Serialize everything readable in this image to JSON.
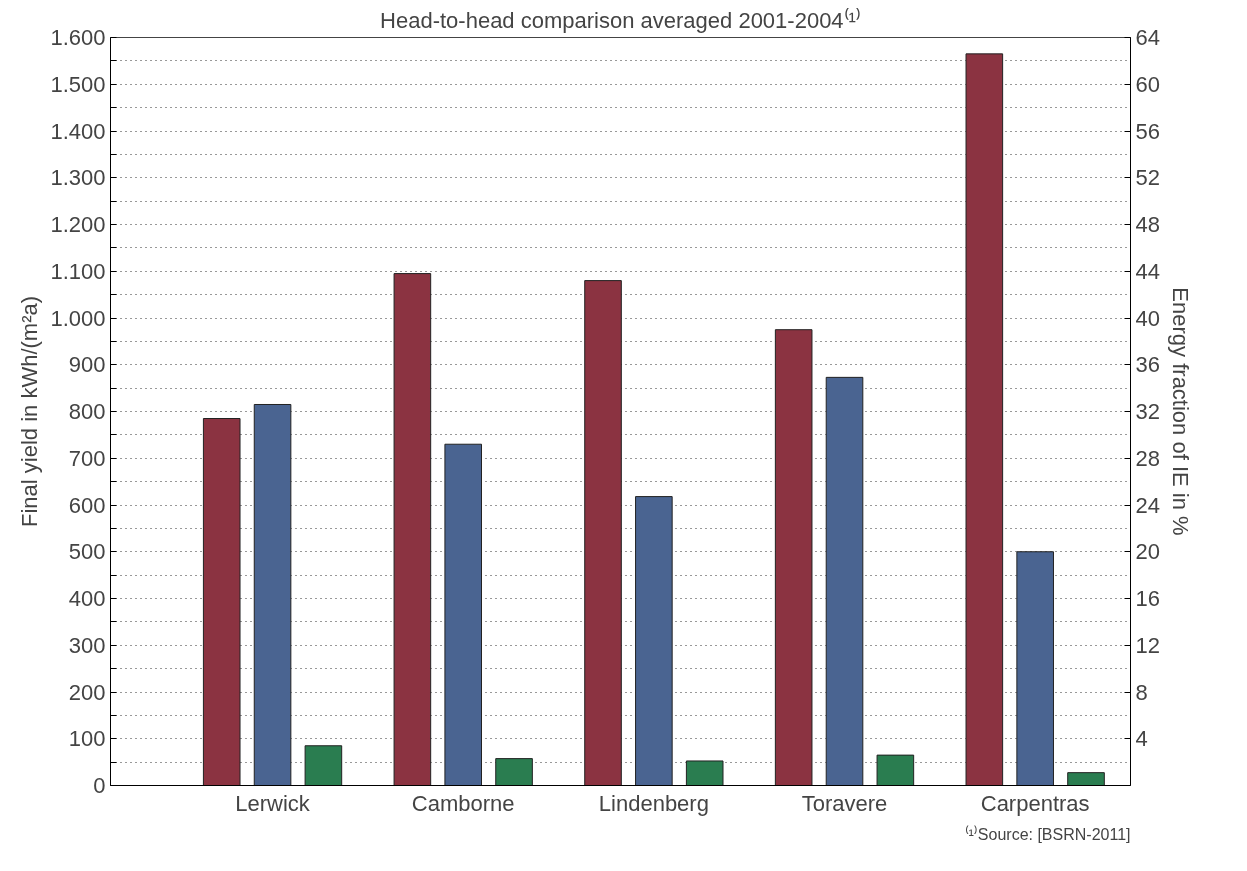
{
  "chart_data": {
    "type": "bar",
    "title": "Head-to-head comparison averaged 2001-2004⁽¹⁾",
    "ylabel": "Final yield in kWh/(m²a)",
    "y2label": "Energy fraction of IE in %",
    "categories": [
      "Lerwick",
      "Camborne",
      "Lindenberg",
      "Toravere",
      "Carpentras"
    ],
    "series": [
      {
        "color": "#8b3341",
        "values": [
          785,
          1095,
          1080,
          975,
          1565
        ]
      },
      {
        "color": "#4a6491",
        "values": [
          815,
          730,
          618,
          873,
          500
        ]
      },
      {
        "color": "#2a7d50",
        "axis": "y2",
        "values": [
          3.4,
          2.3,
          2.1,
          2.6,
          1.1
        ]
      }
    ],
    "ylim": [
      0,
      1600
    ],
    "yticks": [
      0,
      {
        "value": 50,
        "label": null
      },
      100,
      {
        "value": 150,
        "label": null
      },
      200,
      {
        "value": 250,
        "label": null
      },
      300,
      {
        "value": 350,
        "label": null
      },
      400,
      {
        "value": 450,
        "label": null
      },
      500,
      {
        "value": 550,
        "label": null
      },
      600,
      {
        "value": 650,
        "label": null
      },
      700,
      {
        "value": 750,
        "label": null
      },
      800,
      {
        "value": 850,
        "label": null
      },
      900,
      {
        "value": 950,
        "label": null
      },
      {
        "value": 1000,
        "label": "1.000"
      },
      {
        "value": 1050,
        "label": null
      },
      {
        "value": 1100,
        "label": "1.100"
      },
      {
        "value": 1150,
        "label": null
      },
      {
        "value": 1200,
        "label": "1.200"
      },
      {
        "value": 1250,
        "label": null
      },
      {
        "value": 1300,
        "label": "1.300"
      },
      {
        "value": 1350,
        "label": null
      },
      {
        "value": 1400,
        "label": "1.400"
      },
      {
        "value": 1450,
        "label": null
      },
      {
        "value": 1500,
        "label": "1.500"
      },
      {
        "value": 1550,
        "label": null
      },
      {
        "value": 1600,
        "label": "1.600"
      }
    ],
    "y2lim": [
      0,
      64
    ],
    "y2ticks": [
      4,
      8,
      12,
      16,
      20,
      24,
      28,
      32,
      36,
      40,
      44,
      48,
      52,
      56,
      60,
      64
    ],
    "grid": "y",
    "annotations": [
      "⁽¹⁾Source: [BSRN-2011]"
    ]
  }
}
